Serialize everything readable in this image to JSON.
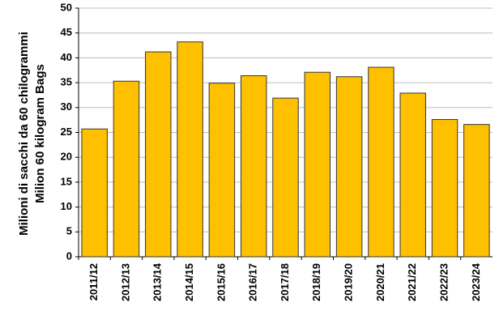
{
  "chart_data": {
    "type": "bar",
    "ylabel": [
      "Milioni di sacchi da 60 chilogrammi",
      "Milion 60 kilogram Bags"
    ],
    "categories": [
      "2011/12",
      "2012/13",
      "2013/14",
      "2014/15",
      "2015/16",
      "2016/17",
      "2017/18",
      "2018/19",
      "2019/20",
      "2020/21",
      "2021/22",
      "2022/23",
      "2023/24"
    ],
    "values": [
      25.7,
      35.3,
      41.2,
      43.2,
      34.9,
      36.4,
      31.9,
      37.1,
      36.2,
      38.1,
      32.9,
      27.6,
      26.6
    ],
    "color": "#ffc000",
    "ylim": [
      0,
      50
    ],
    "yticks": [
      0,
      5,
      10,
      15,
      20,
      25,
      30,
      35,
      40,
      45,
      50
    ],
    "grid": true
  }
}
